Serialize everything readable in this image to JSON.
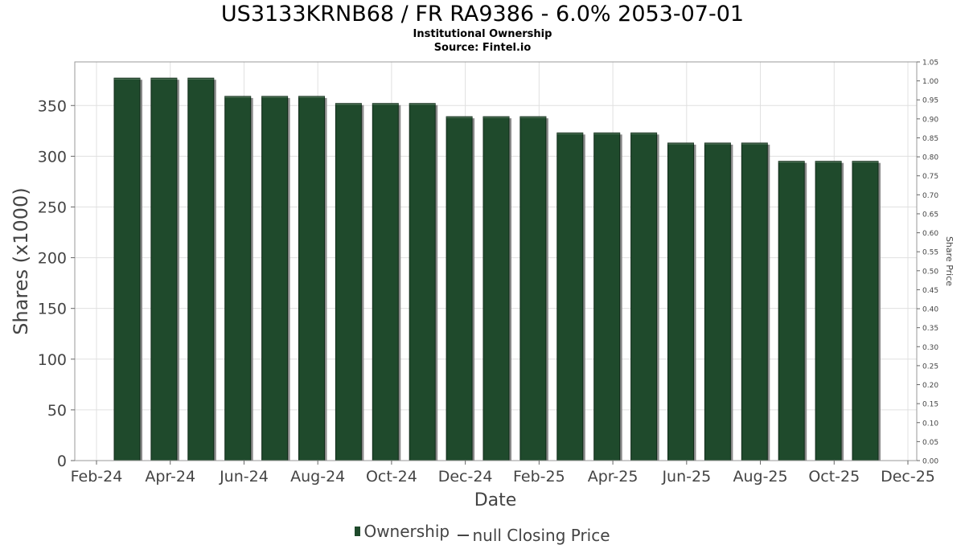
{
  "chart_data": {
    "type": "bar",
    "title": "US3133KRNB68 / FR RA9386 - 6.0% 2053-07-01",
    "subtitle_lines": [
      "Institutional Ownership",
      "Source: Fintel.io"
    ],
    "xlabel": "Date",
    "ylabel": "Shares (x1000)",
    "y2label": "Share Price",
    "ylim": [
      0,
      393
    ],
    "y_ticks": [
      0,
      50,
      100,
      150,
      200,
      250,
      300,
      350
    ],
    "y2lim": [
      0,
      1.05
    ],
    "y2_ticks": [
      "0.00",
      "0.05",
      "0.10",
      "0.15",
      "0.20",
      "0.25",
      "0.30",
      "0.35",
      "0.40",
      "0.45",
      "0.50",
      "0.55",
      "0.60",
      "0.65",
      "0.70",
      "0.75",
      "0.80",
      "0.85",
      "0.90",
      "0.95",
      "1.00",
      "1.05"
    ],
    "x_ticks": [
      "Feb-24",
      "Apr-24",
      "Jun-24",
      "Aug-24",
      "Oct-24",
      "Dec-24",
      "Feb-25",
      "Apr-25",
      "Jun-25",
      "Aug-25",
      "Oct-25",
      "Dec-25"
    ],
    "grid": true,
    "series": [
      {
        "name": "Ownership",
        "color": "#1f4a2c",
        "values": [
          377,
          377,
          377,
          359,
          359,
          359,
          352,
          352,
          352,
          339,
          339,
          339,
          323,
          323,
          323,
          313,
          313,
          313,
          295,
          295,
          295
        ]
      }
    ],
    "legend": {
      "position": "bottom",
      "items": [
        {
          "label": "Ownership",
          "marker": "bar"
        },
        {
          "label": "null Closing Price",
          "marker": "line"
        }
      ]
    }
  }
}
